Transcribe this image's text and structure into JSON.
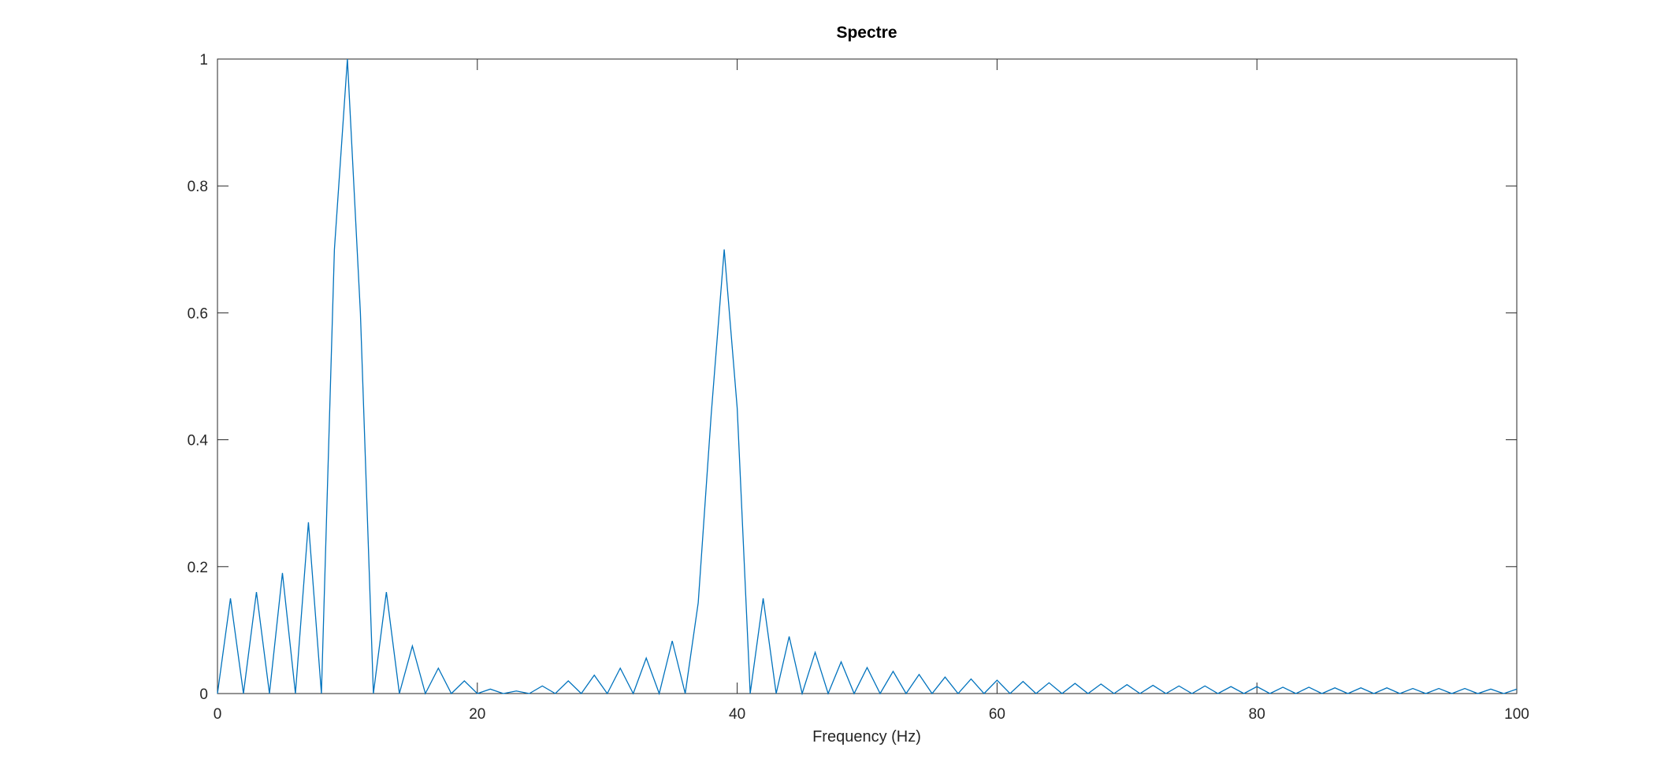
{
  "chart_data": {
    "type": "line",
    "title": "Spectre",
    "xlabel": "Frequency (Hz)",
    "ylabel": "",
    "xlim": [
      0,
      100
    ],
    "ylim": [
      0,
      1
    ],
    "xticks": [
      "0",
      "20",
      "40",
      "60",
      "80",
      "100"
    ],
    "yticks": [
      "0",
      "0.2",
      "0.4",
      "0.6",
      "0.8",
      "1"
    ],
    "grid": false,
    "box": true,
    "colors": {
      "line": "#0072BD",
      "axes": "#262626"
    },
    "series": [
      {
        "x": [
          0,
          1,
          2,
          3,
          4,
          5,
          6,
          7,
          8,
          9,
          10,
          11,
          12,
          13,
          14,
          15,
          16,
          17,
          18,
          19,
          20,
          21,
          22,
          23,
          24,
          25,
          26,
          27,
          28,
          29,
          30,
          31,
          32,
          33,
          34,
          35,
          36,
          37,
          38,
          39,
          40,
          41,
          42,
          43,
          44,
          45,
          46,
          47,
          48,
          49,
          50,
          51,
          52,
          53,
          54,
          55,
          56,
          57,
          58,
          59,
          60,
          61,
          62,
          63,
          64,
          65,
          66,
          67,
          68,
          69,
          70,
          71,
          72,
          73,
          74,
          75,
          76,
          77,
          78,
          79,
          80,
          81,
          82,
          83,
          84,
          85,
          86,
          87,
          88,
          89,
          90,
          91,
          92,
          93,
          94,
          95,
          96,
          97,
          98,
          99,
          100
        ],
        "values": [
          0,
          0.15,
          0,
          0.16,
          0,
          0.19,
          0,
          0.27,
          0,
          0.7,
          1.0,
          0.6,
          0,
          0.16,
          0,
          0.075,
          0,
          0.04,
          0,
          0.02,
          0,
          0.007,
          0,
          0.004,
          0,
          0.012,
          0,
          0.02,
          0,
          0.029,
          0,
          0.04,
          0,
          0.056,
          0,
          0.083,
          0,
          0.143,
          0.44,
          0.7,
          0.45,
          0,
          0.15,
          0,
          0.09,
          0,
          0.065,
          0,
          0.05,
          0,
          0.041,
          0,
          0.035,
          0,
          0.03,
          0,
          0.026,
          0,
          0.023,
          0,
          0.021,
          0,
          0.019,
          0,
          0.017,
          0,
          0.016,
          0,
          0.015,
          0,
          0.014,
          0,
          0.013,
          0,
          0.012,
          0,
          0.012,
          0,
          0.011,
          0,
          0.011,
          0,
          0.01,
          0,
          0.01,
          0,
          0.009,
          0,
          0.009,
          0,
          0.009,
          0,
          0.008,
          0,
          0.008,
          0,
          0.008,
          0,
          0.007,
          0,
          0.007
        ]
      }
    ]
  }
}
